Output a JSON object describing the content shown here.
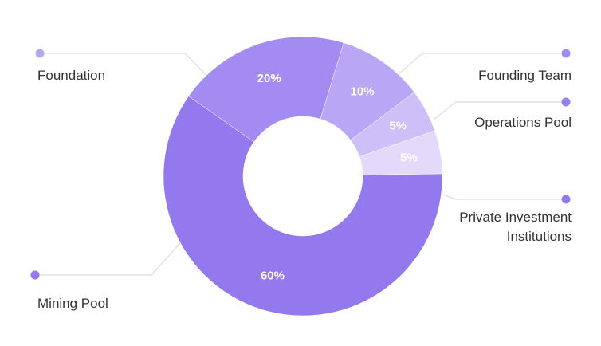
{
  "chart_data": {
    "type": "pie",
    "donut": true,
    "legend": "leader-lines",
    "slices": [
      {
        "label": "Mining Pool",
        "value": 60,
        "display": "60%",
        "color": "#9478ee"
      },
      {
        "label": "Foundation",
        "value": 20,
        "display": "20%",
        "color": "#a48bf1"
      },
      {
        "label": "Founding Team",
        "value": 10,
        "display": "10%",
        "color": "#b9a6f5"
      },
      {
        "label": "Operations Pool",
        "value": 5,
        "display": "5%",
        "color": "#cebff8"
      },
      {
        "label": "Private Investment Institutions",
        "value": 5,
        "display": "5%",
        "color": "#e2d9fb"
      }
    ]
  }
}
